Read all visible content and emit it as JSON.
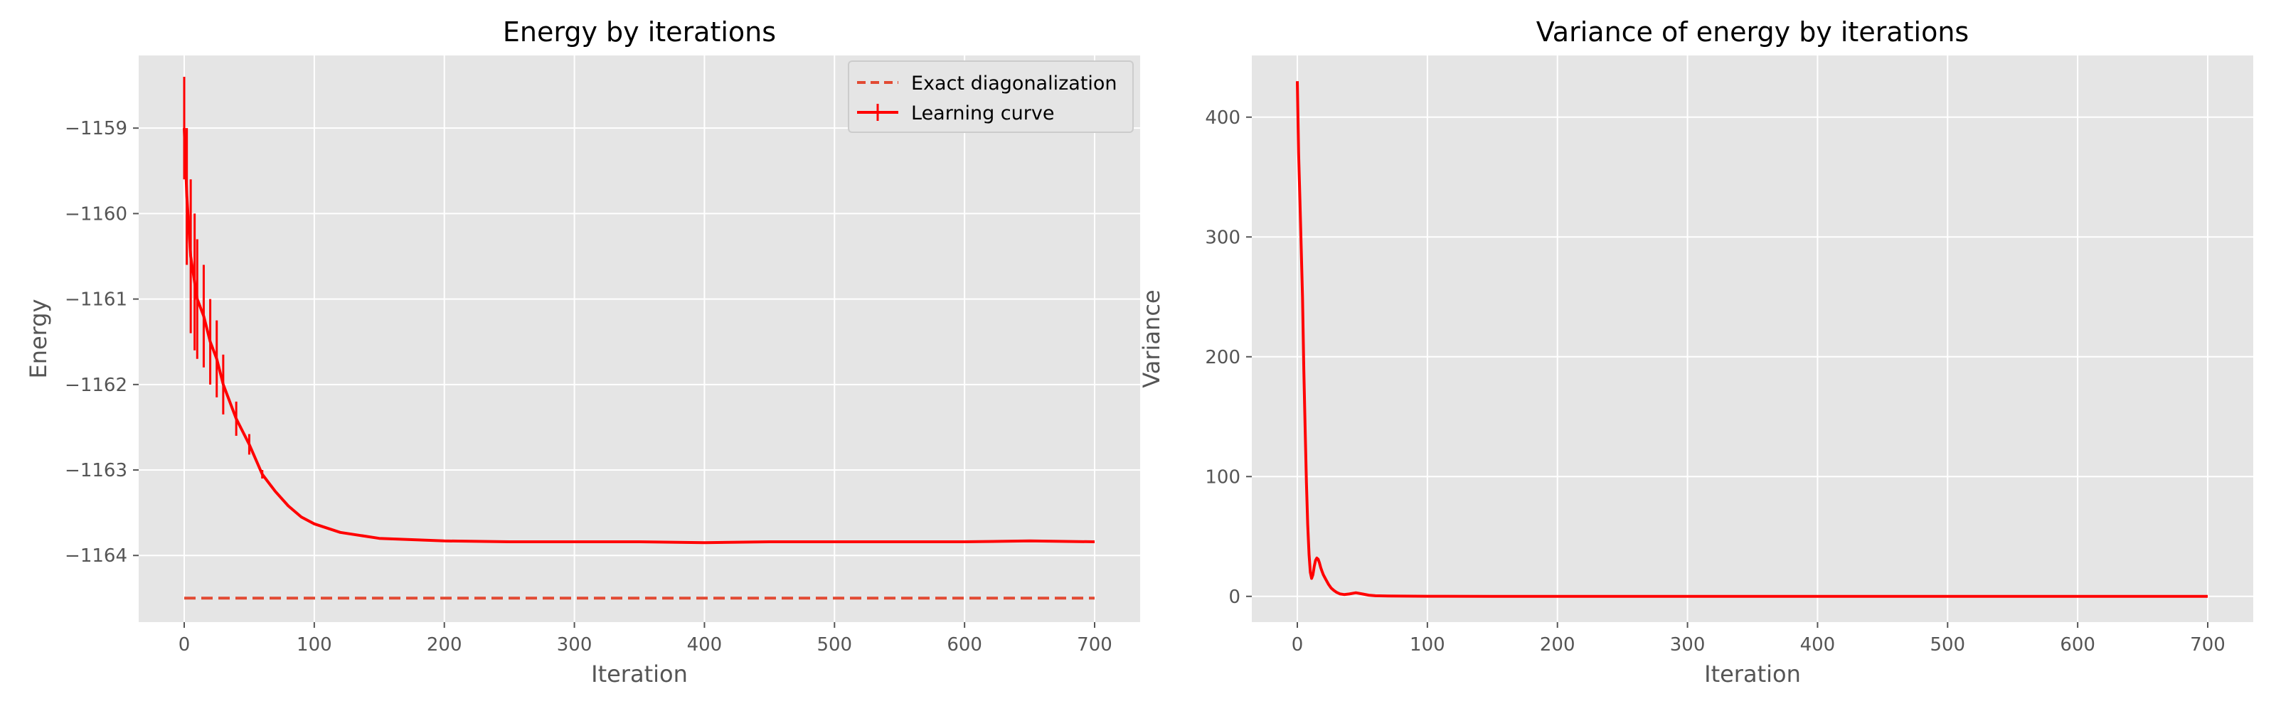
{
  "chart_data": [
    {
      "type": "line",
      "title": "Energy by iterations",
      "xlabel": "Iteration",
      "ylabel": "Energy",
      "xlim": [
        -35,
        735
      ],
      "ylim": [
        -1164.78,
        -1158.15
      ],
      "xticks": [
        0,
        100,
        200,
        300,
        400,
        500,
        600,
        700
      ],
      "yticks": [
        -1164,
        -1163,
        -1162,
        -1161,
        -1160,
        -1159
      ],
      "xtick_labels": [
        "0",
        "100",
        "200",
        "300",
        "400",
        "500",
        "600",
        "700"
      ],
      "ytick_labels": [
        "−1164",
        "−1163",
        "−1162",
        "−1161",
        "−1160",
        "−1159"
      ],
      "grid": true,
      "legend": {
        "position": "top-right",
        "entries": [
          "Exact diagonalization",
          "Learning curve"
        ]
      },
      "series": [
        {
          "name": "Exact diagonalization",
          "style": "dashed",
          "color": "#E24A33",
          "x": [
            0,
            700
          ],
          "y": [
            -1164.5,
            -1164.5
          ]
        },
        {
          "name": "Learning curve",
          "style": "solid-with-errorbars",
          "color": "#FF0000",
          "x": [
            0,
            2,
            5,
            8,
            10,
            15,
            20,
            25,
            30,
            40,
            50,
            60,
            70,
            80,
            90,
            100,
            120,
            150,
            200,
            250,
            300,
            350,
            400,
            450,
            500,
            550,
            600,
            650,
            700
          ],
          "y": [
            -1159.0,
            -1159.8,
            -1160.5,
            -1160.8,
            -1161.0,
            -1161.2,
            -1161.5,
            -1161.7,
            -1162.0,
            -1162.4,
            -1162.7,
            -1163.05,
            -1163.25,
            -1163.42,
            -1163.55,
            -1163.63,
            -1163.73,
            -1163.8,
            -1163.83,
            -1163.84,
            -1163.84,
            -1163.84,
            -1163.85,
            -1163.84,
            -1163.84,
            -1163.84,
            -1163.84,
            -1163.83,
            -1163.84
          ],
          "err": [
            0.6,
            0.8,
            0.9,
            0.8,
            0.7,
            0.6,
            0.5,
            0.45,
            0.35,
            0.2,
            0.12,
            0.05,
            0.03,
            0.02,
            0.02,
            0.02,
            0.02,
            0.02,
            0.02,
            0.02,
            0.02,
            0.02,
            0.02,
            0.02,
            0.02,
            0.02,
            0.02,
            0.02,
            0.02
          ]
        }
      ]
    },
    {
      "type": "line",
      "title": "Variance of energy by iterations",
      "xlabel": "Iteration",
      "ylabel": "Variance",
      "xlim": [
        -35,
        735
      ],
      "ylim": [
        -21.5,
        451.5
      ],
      "xticks": [
        0,
        100,
        200,
        300,
        400,
        500,
        600,
        700
      ],
      "yticks": [
        0,
        100,
        200,
        300,
        400
      ],
      "xtick_labels": [
        "0",
        "100",
        "200",
        "300",
        "400",
        "500",
        "600",
        "700"
      ],
      "ytick_labels": [
        "0",
        "100",
        "200",
        "300",
        "400"
      ],
      "grid": true,
      "series": [
        {
          "style": "solid",
          "color": "#FF0000",
          "x": [
            0,
            1,
            2,
            3,
            4,
            5,
            6,
            7,
            8,
            9,
            10,
            11,
            12,
            13,
            14,
            15,
            16,
            17,
            18,
            19,
            20,
            22,
            24,
            26,
            28,
            30,
            33,
            36,
            40,
            45,
            50,
            55,
            60,
            70,
            80,
            100,
            150,
            200,
            300,
            400,
            500,
            600,
            700
          ],
          "y": [
            430,
            370,
            330,
            290,
            250,
            190,
            140,
            95,
            60,
            35,
            20,
            15,
            18,
            25,
            30,
            32,
            31,
            28,
            24,
            21,
            18,
            14,
            10,
            7,
            5,
            3.5,
            2,
            1.5,
            2,
            3,
            2,
            1,
            0.5,
            0.3,
            0.2,
            0.1,
            0.05,
            0.05,
            0.05,
            0.05,
            0.05,
            0.05,
            0.05
          ]
        }
      ]
    }
  ]
}
